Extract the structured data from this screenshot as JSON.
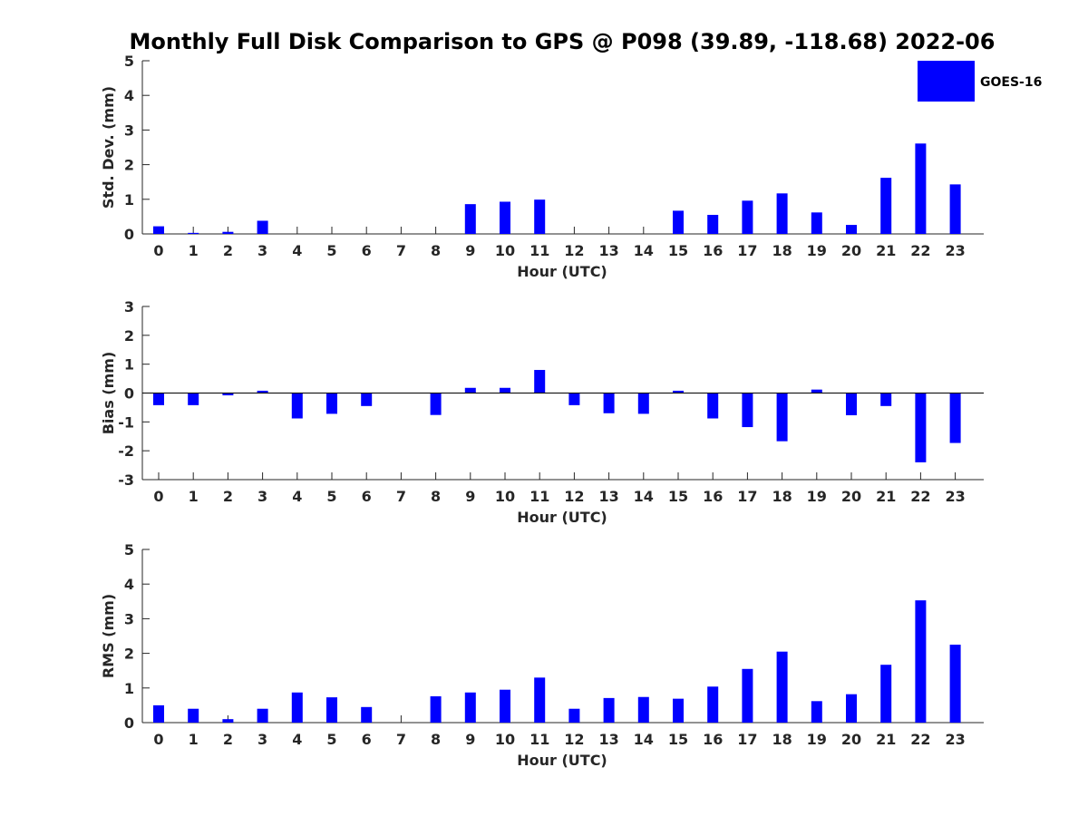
{
  "figure": {
    "title": "Monthly Full Disk Comparison to GPS @ P098 (39.89, -118.68) 2022-06"
  },
  "legend": {
    "label": "GOES-16",
    "color": "#0000ff",
    "placement": "top-right"
  },
  "chart_data": [
    {
      "type": "bar",
      "name": "std",
      "xlabel": "Hour (UTC)",
      "ylabel": "Std. Dev. (mm)",
      "ylim": [
        0,
        5
      ],
      "yticks": [
        0,
        1,
        2,
        3,
        4,
        5
      ],
      "categories": [
        "0",
        "1",
        "2",
        "3",
        "4",
        "5",
        "6",
        "7",
        "8",
        "9",
        "10",
        "11",
        "12",
        "13",
        "14",
        "15",
        "16",
        "17",
        "18",
        "19",
        "20",
        "21",
        "22",
        "23"
      ],
      "series": [
        {
          "name": "GOES-16",
          "color": "#0000ff",
          "values": [
            0.22,
            0.03,
            0.06,
            0.38,
            0,
            0,
            0,
            0,
            0,
            0.86,
            0.93,
            0.99,
            0,
            0,
            0,
            0.67,
            0.55,
            0.96,
            1.17,
            0.62,
            0.26,
            1.62,
            2.61,
            1.43
          ]
        }
      ]
    },
    {
      "type": "bar",
      "name": "bias",
      "xlabel": "Hour (UTC)",
      "ylabel": "Bias (mm)",
      "ylim": [
        -3,
        3
      ],
      "yticks": [
        -3,
        -2,
        -1,
        0,
        1,
        2,
        3
      ],
      "categories": [
        "0",
        "1",
        "2",
        "3",
        "4",
        "5",
        "6",
        "7",
        "8",
        "9",
        "10",
        "11",
        "12",
        "13",
        "14",
        "15",
        "16",
        "17",
        "18",
        "19",
        "20",
        "21",
        "22",
        "23"
      ],
      "series": [
        {
          "name": "GOES-16",
          "color": "#0000ff",
          "values": [
            -0.42,
            -0.42,
            -0.08,
            0.08,
            -0.88,
            -0.72,
            -0.45,
            0,
            -0.76,
            0.18,
            0.18,
            0.8,
            -0.42,
            -0.7,
            -0.72,
            0.08,
            -0.88,
            -1.18,
            -1.67,
            0.12,
            -0.77,
            -0.45,
            -2.4,
            -1.73
          ]
        }
      ]
    },
    {
      "type": "bar",
      "name": "rms",
      "xlabel": "Hour (UTC)",
      "ylabel": "RMS (mm)",
      "ylim": [
        0,
        5
      ],
      "yticks": [
        0,
        1,
        2,
        3,
        4,
        5
      ],
      "categories": [
        "0",
        "1",
        "2",
        "3",
        "4",
        "5",
        "6",
        "7",
        "8",
        "9",
        "10",
        "11",
        "12",
        "13",
        "14",
        "15",
        "16",
        "17",
        "18",
        "19",
        "20",
        "21",
        "22",
        "23"
      ],
      "series": [
        {
          "name": "GOES-16",
          "color": "#0000ff",
          "values": [
            0.5,
            0.4,
            0.1,
            0.4,
            0.87,
            0.73,
            0.45,
            0,
            0.76,
            0.87,
            0.95,
            1.3,
            0.4,
            0.71,
            0.74,
            0.69,
            1.04,
            1.55,
            2.05,
            0.62,
            0.82,
            1.67,
            3.53,
            2.25
          ]
        }
      ]
    }
  ]
}
